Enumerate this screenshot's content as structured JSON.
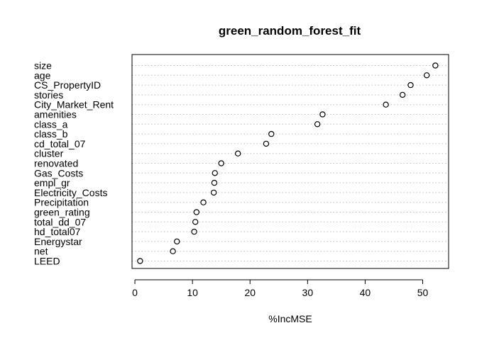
{
  "chart_data": {
    "type": "dotchart",
    "title": "green_random_forest_fit",
    "xlabel": "%IncMSE",
    "ylabel": "",
    "xlim": [
      -0.5,
      54.5
    ],
    "xticks": [
      0,
      10,
      20,
      30,
      40,
      50
    ],
    "grid": "dotted horizontal lines",
    "categories": [
      "size",
      "age",
      "CS_PropertyID",
      "stories",
      "City_Market_Rent",
      "amenities",
      "class_a",
      "class_b",
      "cd_total_07",
      "cluster",
      "renovated",
      "Gas_Costs",
      "empl_gr",
      "Electricity_Costs",
      "Precipitation",
      "green_rating",
      "total_dd_07",
      "hd_total07",
      "Energystar",
      "net",
      "LEED"
    ],
    "values": [
      52.2,
      50.7,
      47.9,
      46.5,
      43.6,
      32.6,
      31.7,
      23.7,
      22.8,
      17.9,
      15.0,
      13.9,
      13.8,
      13.7,
      11.9,
      10.7,
      10.5,
      10.3,
      7.3,
      6.6,
      0.9
    ]
  }
}
